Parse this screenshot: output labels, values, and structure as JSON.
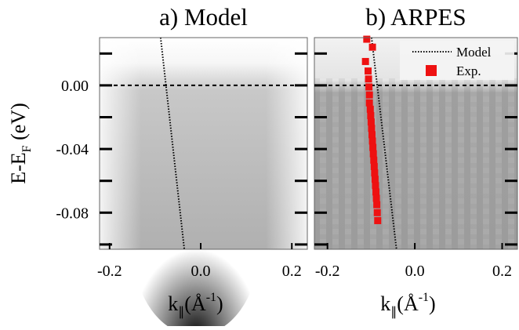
{
  "chart_data": [
    {
      "type": "line",
      "title": "a) Model",
      "ylabel": [
        "E-E",
        "F",
        " (eV)"
      ],
      "xlabel": [
        "k",
        "∥",
        "(Å",
        "-1",
        ")"
      ],
      "xlim": [
        -0.222,
        0.234
      ],
      "ylim": [
        -0.103,
        0.03
      ],
      "xticks": [
        -0.2,
        {
          "value": 0,
          "label": "0.0"
        },
        0.2
      ],
      "yticks": [
        0.02,
        {
          "value": 0,
          "label": "0.00"
        },
        -0.02,
        -0.04,
        -0.06,
        -0.08,
        -0.1
      ],
      "ytick_labels": [
        false,
        true,
        false,
        true,
        false,
        true,
        false
      ],
      "fermi_line": 0,
      "series": [
        {
          "name": "Model",
          "style": "dotted",
          "color": "#000000",
          "x": [
            -0.088,
            -0.036
          ],
          "y": [
            0.03,
            -0.103
          ]
        }
      ]
    },
    {
      "type": "line",
      "title": "b) ARPES",
      "xlabel": [
        "k",
        "∥",
        "(Å",
        "-1",
        ")"
      ],
      "xlim": [
        -0.23,
        0.235
      ],
      "ylim": [
        -0.103,
        0.03
      ],
      "xticks": [
        -0.2,
        {
          "value": 0,
          "label": "0.0"
        },
        0.2
      ],
      "yticks": [
        0.02,
        0,
        -0.02,
        -0.04,
        -0.06,
        -0.08,
        -0.1
      ],
      "fermi_line": 0,
      "legend": "upper right",
      "series": [
        {
          "name": "Model",
          "style": "dotted",
          "color": "#000000",
          "x": [
            -0.099,
            -0.042
          ],
          "y": [
            0.03,
            -0.103
          ]
        },
        {
          "name": "Exp.",
          "style": "square",
          "color": "#ee1111",
          "x": [
            -0.11,
            -0.097,
            -0.113,
            -0.107,
            -0.106,
            -0.105,
            -0.104,
            -0.104,
            -0.102,
            -0.101,
            -0.1,
            -0.099,
            -0.098,
            -0.097,
            -0.096,
            -0.095,
            -0.094,
            -0.093,
            -0.092,
            -0.091,
            -0.09,
            -0.089,
            -0.088,
            -0.087,
            -0.086,
            -0.085
          ],
          "y": [
            0.029,
            0.024,
            0.015,
            0.009,
            0.004,
            -0.001,
            -0.006,
            -0.011,
            -0.015,
            -0.019,
            -0.023,
            -0.027,
            -0.031,
            -0.035,
            -0.039,
            -0.043,
            -0.047,
            -0.051,
            -0.055,
            -0.059,
            -0.063,
            -0.067,
            -0.071,
            -0.075,
            -0.08,
            -0.085
          ]
        }
      ]
    }
  ]
}
